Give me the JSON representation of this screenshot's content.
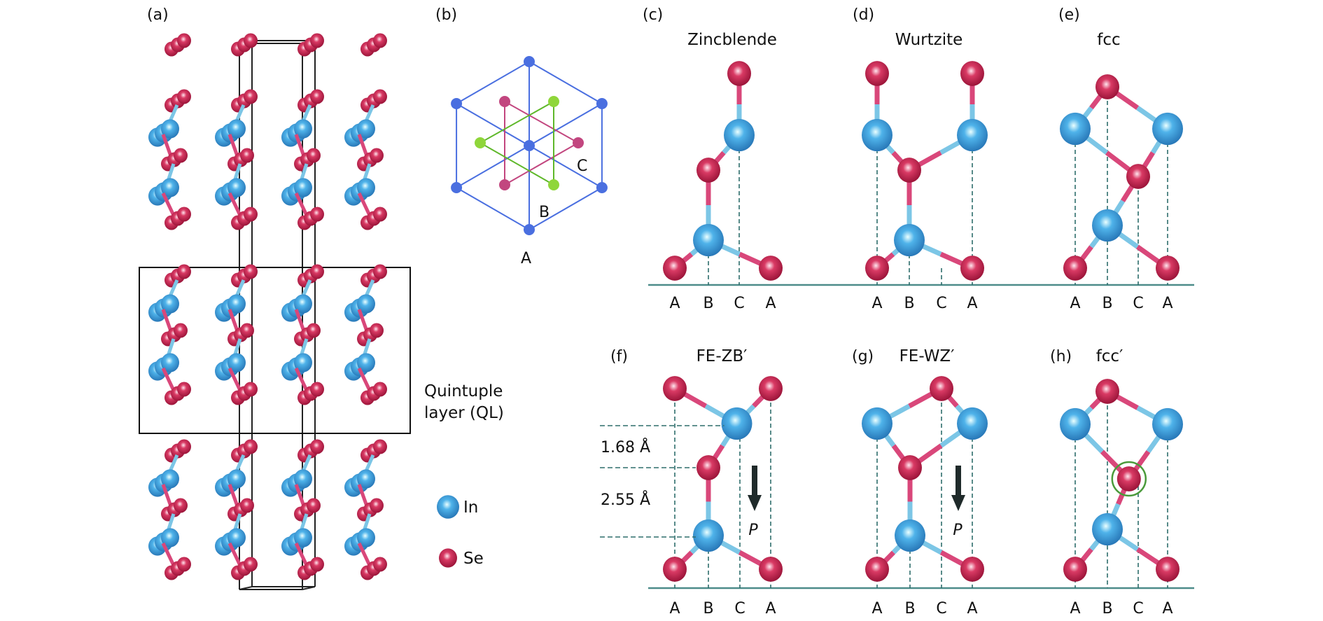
{
  "colors": {
    "se": "#c8254f",
    "in": "#3d9ad6",
    "bond_in": "#7cc6e6",
    "bond_se": "#d9477a",
    "guide": "#2e6e6c",
    "baseline": "#4d8c8a",
    "green": "#8fd63a",
    "pink": "#c2467f",
    "hex": "#4a6fe0"
  },
  "panel_a": {
    "label": "(a)",
    "ql_label_1": "Quintuple",
    "ql_label_2": "layer (QL)",
    "legend": [
      {
        "element": "In",
        "label": "In"
      },
      {
        "element": "Se",
        "label": "Se"
      }
    ]
  },
  "panel_b": {
    "label": "(b)",
    "site_a": "A",
    "site_b": "B",
    "site_c": "C"
  },
  "panels": [
    {
      "label": "(c)",
      "title": "Zincblende",
      "sites": [
        "A",
        "B",
        "C",
        "A"
      ]
    },
    {
      "label": "(d)",
      "title": "Wurtzite",
      "sites": [
        "A",
        "B",
        "C",
        "A"
      ]
    },
    {
      "label": "(e)",
      "title": "fcc",
      "sites": [
        "A",
        "B",
        "C",
        "A"
      ]
    },
    {
      "label": "(f)",
      "title": "FE-ZB′",
      "sites": [
        "A",
        "B",
        "C",
        "A"
      ],
      "spacing_1": "1.68 Å",
      "spacing_2": "2.55 Å",
      "polarization": "P"
    },
    {
      "label": "(g)",
      "title": "FE-WZ′",
      "sites": [
        "A",
        "B",
        "C",
        "A"
      ],
      "polarization": "P"
    },
    {
      "label": "(h)",
      "title": "fcc′",
      "sites": [
        "A",
        "B",
        "C",
        "A"
      ]
    }
  ]
}
